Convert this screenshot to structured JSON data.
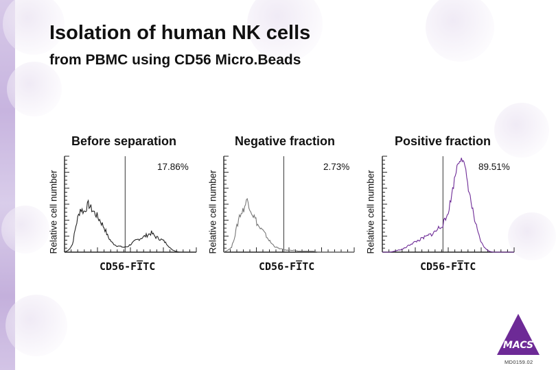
{
  "title": "Isolation of human NK cells",
  "subtitle": "from PBMC using CD56 Micro.Beads",
  "doc_code": "MD0159.02",
  "logo_text": "MACS",
  "colors": {
    "accent": "#6d2a96",
    "strip": "#c9b7df",
    "neg_line": "#777777",
    "pos_line": "#6d2a96",
    "before_line": "#222222"
  },
  "chart_data": [
    {
      "type": "line",
      "title": "Before separation",
      "xlabel": "CD56-FI̅TC",
      "ylabel": "Relative cell number",
      "gate_label": "17.86%",
      "gate_x": 0.46,
      "xlim": [
        0,
        1
      ],
      "ylim": [
        0,
        1
      ],
      "x": [
        0.0,
        0.03,
        0.06,
        0.09,
        0.12,
        0.15,
        0.18,
        0.21,
        0.24,
        0.27,
        0.3,
        0.33,
        0.36,
        0.39,
        0.42,
        0.45,
        0.48,
        0.51,
        0.54,
        0.57,
        0.6,
        0.63,
        0.66,
        0.69,
        0.72,
        0.75,
        0.78,
        0.81,
        0.84,
        0.87,
        0.9,
        0.93,
        0.96,
        1.0
      ],
      "values": [
        0.0,
        0.02,
        0.08,
        0.3,
        0.45,
        0.42,
        0.5,
        0.44,
        0.39,
        0.33,
        0.26,
        0.16,
        0.1,
        0.07,
        0.06,
        0.05,
        0.06,
        0.09,
        0.12,
        0.14,
        0.16,
        0.18,
        0.2,
        0.16,
        0.14,
        0.12,
        0.08,
        0.03,
        0.01,
        0.0,
        0.0,
        0.0,
        0.0,
        0.0
      ]
    },
    {
      "type": "line",
      "title": "Negative fraction",
      "xlabel": "CD56-FI̅TC",
      "ylabel": "Relative cell number",
      "gate_label": "2.73%",
      "gate_x": 0.46,
      "xlim": [
        0,
        1
      ],
      "ylim": [
        0,
        1
      ],
      "x": [
        0.0,
        0.03,
        0.06,
        0.09,
        0.12,
        0.15,
        0.18,
        0.21,
        0.24,
        0.27,
        0.3,
        0.33,
        0.36,
        0.39,
        0.42,
        0.45,
        0.48,
        0.51,
        0.54,
        0.57,
        0.6,
        0.63,
        0.66,
        0.69,
        0.72,
        0.75,
        0.78,
        0.81,
        0.84,
        0.87,
        0.9,
        0.93,
        0.96,
        1.0
      ],
      "values": [
        0.0,
        0.02,
        0.05,
        0.2,
        0.38,
        0.44,
        0.55,
        0.43,
        0.35,
        0.26,
        0.22,
        0.16,
        0.1,
        0.06,
        0.04,
        0.03,
        0.02,
        0.02,
        0.02,
        0.01,
        0.01,
        0.01,
        0.01,
        0.01,
        0.0,
        0.0,
        0.0,
        0.0,
        0.0,
        0.0,
        0.0,
        0.0,
        0.0,
        0.0
      ]
    },
    {
      "type": "line",
      "title": "Positive fraction",
      "xlabel": "CD56-FI̅TC",
      "ylabel": "Relative cell number",
      "gate_label": "89.51%",
      "gate_x": 0.46,
      "xlim": [
        0,
        1
      ],
      "ylim": [
        0,
        1
      ],
      "x": [
        0.0,
        0.03,
        0.06,
        0.09,
        0.12,
        0.15,
        0.18,
        0.21,
        0.24,
        0.27,
        0.3,
        0.33,
        0.36,
        0.39,
        0.42,
        0.45,
        0.48,
        0.51,
        0.54,
        0.57,
        0.6,
        0.63,
        0.66,
        0.69,
        0.72,
        0.75,
        0.78,
        0.81,
        0.84,
        0.87,
        0.9,
        0.93,
        0.96,
        1.0
      ],
      "values": [
        0.0,
        0.0,
        0.0,
        0.01,
        0.02,
        0.03,
        0.05,
        0.08,
        0.1,
        0.12,
        0.14,
        0.16,
        0.18,
        0.2,
        0.24,
        0.28,
        0.33,
        0.48,
        0.7,
        0.92,
        1.0,
        0.86,
        0.62,
        0.4,
        0.22,
        0.1,
        0.04,
        0.01,
        0.0,
        0.0,
        0.0,
        0.0,
        0.0,
        0.0
      ]
    }
  ]
}
